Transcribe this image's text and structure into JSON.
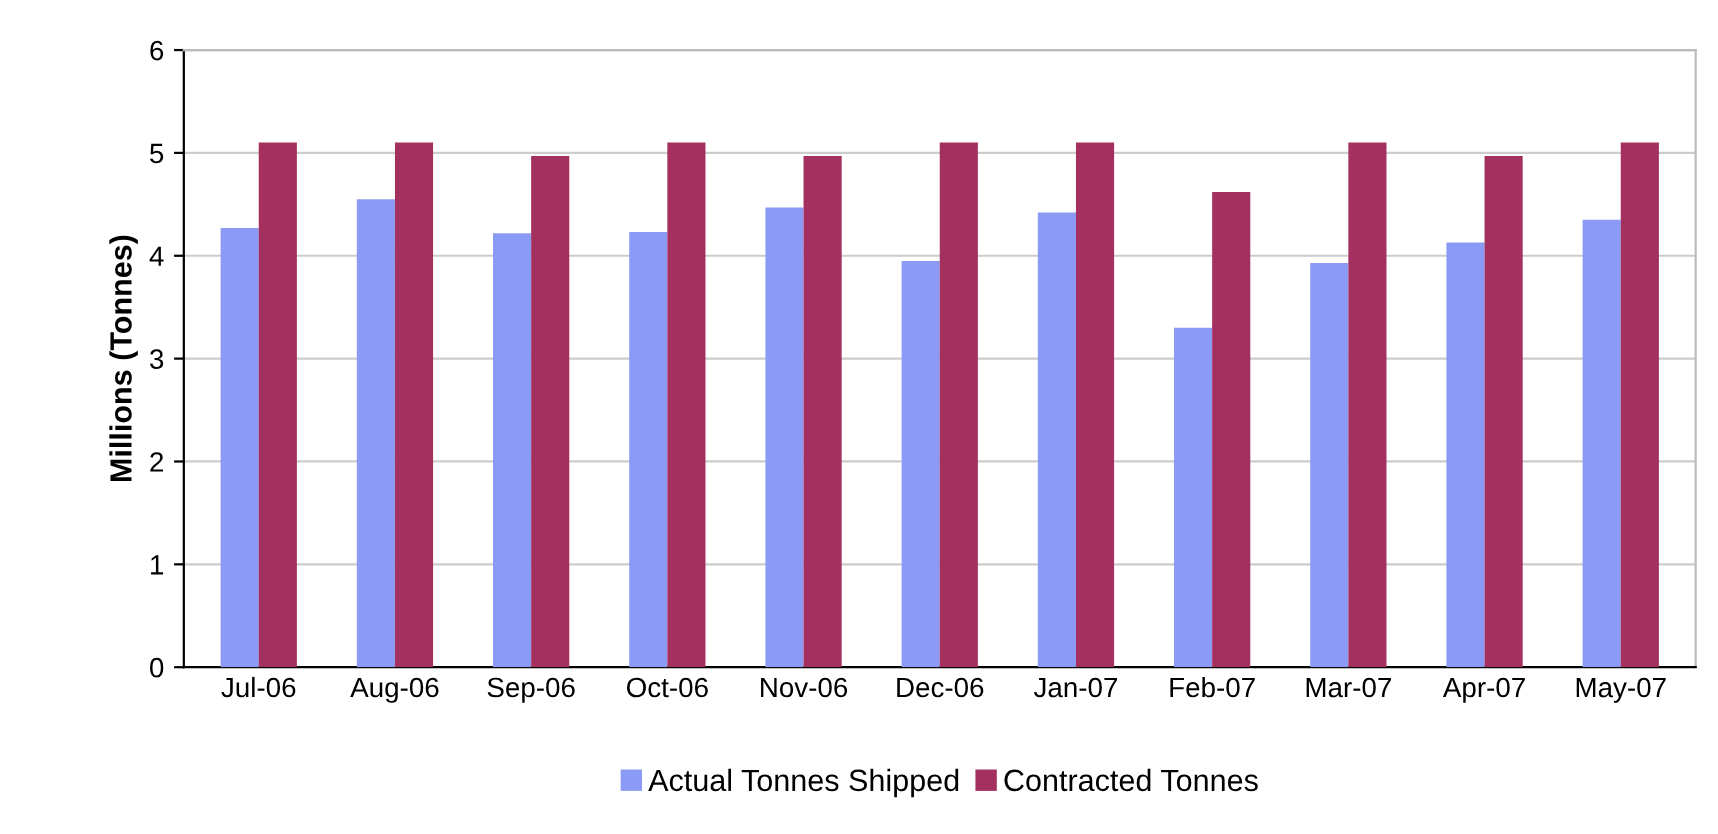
{
  "chart_data": {
    "type": "bar",
    "ylabel": "Millions (Tonnes)",
    "categories": [
      "Jul-06",
      "Aug-06",
      "Sep-06",
      "Oct-06",
      "Nov-06",
      "Dec-06",
      "Jan-07",
      "Feb-07",
      "Mar-07",
      "Apr-07",
      "May-07"
    ],
    "series": [
      {
        "name": "Actual Tonnes Shipped",
        "color": "#8b9bf5",
        "values": [
          4.27,
          4.55,
          4.22,
          4.23,
          4.47,
          3.95,
          4.42,
          3.3,
          3.93,
          4.13,
          4.35
        ]
      },
      {
        "name": "Contracted Tonnes",
        "color": "#a3305f",
        "values": [
          5.1,
          5.1,
          4.97,
          5.1,
          4.97,
          5.1,
          5.1,
          4.62,
          5.1,
          4.97,
          5.1
        ]
      }
    ],
    "ylim": [
      0,
      6
    ],
    "yticks": [
      0,
      1,
      2,
      3,
      4,
      5,
      6
    ],
    "grid": "y",
    "legend": "bottom"
  }
}
